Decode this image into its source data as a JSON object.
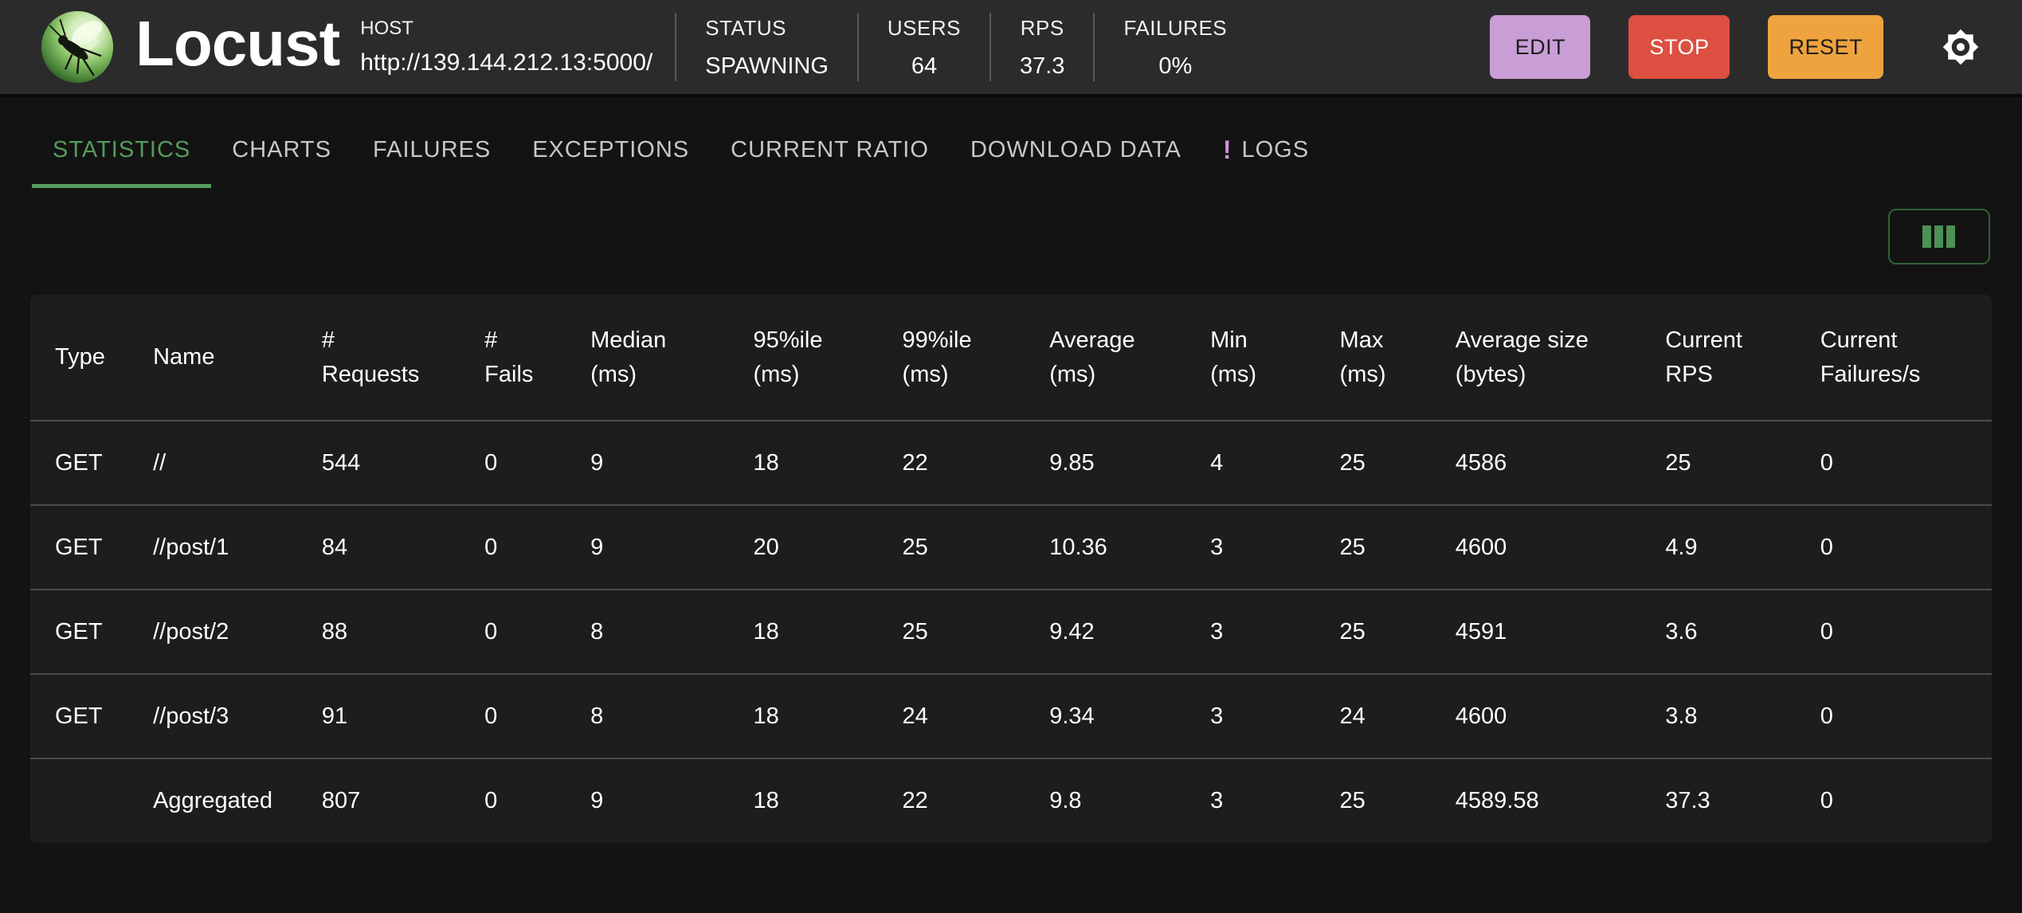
{
  "header": {
    "title": "Locust",
    "host": {
      "label": "HOST",
      "url": "http://139.144.212.13:5000/"
    },
    "stats": [
      {
        "label": "STATUS",
        "value": "SPAWNING"
      },
      {
        "label": "USERS",
        "value": "64"
      },
      {
        "label": "RPS",
        "value": "37.3"
      },
      {
        "label": "FAILURES",
        "value": "0%"
      }
    ],
    "buttons": {
      "edit": "EDIT",
      "stop": "STOP",
      "reset": "RESET"
    },
    "colors": {
      "edit_bg": "#c99ed6",
      "stop_bg": "#dc4f41",
      "reset_bg": "#eea33e",
      "header_bg": "#2b2b2b"
    }
  },
  "tabs": {
    "items": [
      {
        "label": "STATISTICS",
        "active": true
      },
      {
        "label": "CHARTS",
        "active": false
      },
      {
        "label": "FAILURES",
        "active": false
      },
      {
        "label": "EXCEPTIONS",
        "active": false
      },
      {
        "label": "CURRENT RATIO",
        "active": false
      },
      {
        "label": "DOWNLOAD DATA",
        "active": false
      },
      {
        "label": "LOGS",
        "active": false,
        "badge": "!"
      }
    ],
    "colors": {
      "active_green": "#539c5d",
      "badge_purple": "#ce93d8"
    }
  },
  "toolbar": {
    "column_selector_icon": "view-columns-icon"
  },
  "table": {
    "columns": [
      [
        "Type",
        ""
      ],
      [
        "Name",
        ""
      ],
      [
        "#",
        "Requests"
      ],
      [
        "#",
        "Fails"
      ],
      [
        "Median",
        "(ms)"
      ],
      [
        "95%ile",
        "(ms)"
      ],
      [
        "99%ile",
        "(ms)"
      ],
      [
        "Average",
        "(ms)"
      ],
      [
        "Min",
        "(ms)"
      ],
      [
        "Max",
        "(ms)"
      ],
      [
        "Average size",
        "(bytes)"
      ],
      [
        "Current",
        "RPS"
      ],
      [
        "Current",
        "Failures/s"
      ]
    ],
    "rows": [
      [
        "GET",
        "//",
        "544",
        "0",
        "9",
        "18",
        "22",
        "9.85",
        "4",
        "25",
        "4586",
        "25",
        "0"
      ],
      [
        "GET",
        "//post/1",
        "84",
        "0",
        "9",
        "20",
        "25",
        "10.36",
        "3",
        "25",
        "4600",
        "4.9",
        "0"
      ],
      [
        "GET",
        "//post/2",
        "88",
        "0",
        "8",
        "18",
        "25",
        "9.42",
        "3",
        "25",
        "4591",
        "3.6",
        "0"
      ],
      [
        "GET",
        "//post/3",
        "91",
        "0",
        "8",
        "18",
        "24",
        "9.34",
        "3",
        "24",
        "4600",
        "3.8",
        "0"
      ],
      [
        "",
        "Aggregated",
        "807",
        "0",
        "9",
        "18",
        "22",
        "9.8",
        "3",
        "25",
        "4589.58",
        "37.3",
        "0"
      ]
    ]
  }
}
